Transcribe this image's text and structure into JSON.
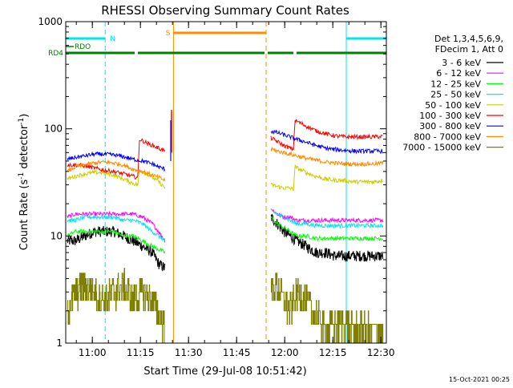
{
  "footer": {
    "timestamp": "15-Oct-2021 00:25"
  },
  "chart_data": {
    "type": "line",
    "title": "RHESSI Observing Summary Count Rates",
    "xlabel": "Start Time (29-Jul-08 10:51:42)",
    "ylabel_parts": [
      "Count Rate (s",
      "-1",
      " detector",
      "-1",
      ")"
    ],
    "yscale": "log",
    "ylim": [
      1,
      1000
    ],
    "xlim_minutes_after_10_51_42": [
      0,
      100
    ],
    "x_ticks": [
      {
        "label": "11:00",
        "t": 8.3
      },
      {
        "label": "11:15",
        "t": 23.3
      },
      {
        "label": "11:30",
        "t": 38.3
      },
      {
        "label": "11:45",
        "t": 53.3
      },
      {
        "label": "12:00",
        "t": 68.3
      },
      {
        "label": "12:15",
        "t": 83.3
      },
      {
        "label": "12:30",
        "t": 98.3
      }
    ],
    "y_ticks": [
      {
        "label": "1",
        "v": 1
      },
      {
        "label": "10",
        "v": 10
      },
      {
        "label": "100",
        "v": 100
      },
      {
        "label": "1000",
        "v": 1000
      }
    ],
    "legend": {
      "header": [
        "Det 1,3,4,5,6,9,",
        "FDecim 1, Att 0"
      ],
      "placement": "right"
    },
    "flags": [
      {
        "label": "N",
        "color": "#00e5ee",
        "segments": [
          [
            0,
            12.3
          ],
          [
            87.5,
            100
          ]
        ]
      },
      {
        "label": "S",
        "color": "#ff8c00",
        "segments": [
          [
            33.6,
            62.5
          ]
        ]
      },
      {
        "label": "RDO",
        "color": "#008000",
        "segments": [
          [
            0,
            2.5
          ]
        ]
      },
      {
        "label": "RD4",
        "color": "#008000",
        "segments": [
          [
            0,
            21.5
          ],
          [
            22.5,
            62
          ],
          [
            63,
            71
          ],
          [
            72,
            100
          ]
        ]
      }
    ],
    "markers": [
      {
        "t": 12.3,
        "color": "#00e5ee",
        "style": "dashed"
      },
      {
        "t": 33.6,
        "color": "#ff8c00",
        "style": "solid"
      },
      {
        "t": 62.5,
        "color": "#ff8c00",
        "style": "dashed"
      },
      {
        "t": 87.5,
        "color": "#00e5ee",
        "style": "solid"
      },
      {
        "t": 100,
        "color": "#00e5ee",
        "style": "dashed"
      }
    ],
    "data_gap_minutes": [
      33.6,
      63.5
    ],
    "series": [
      {
        "name": "3 - 6 keV",
        "color": "#000000",
        "x": [
          0.5,
          3,
          6,
          9,
          12,
          15,
          18,
          21,
          24,
          27,
          29,
          31,
          64,
          66,
          68,
          70,
          72,
          75,
          78,
          81,
          84,
          87,
          90,
          93,
          96,
          99
        ],
        "y": [
          9,
          9,
          10,
          11,
          11,
          11,
          10,
          9,
          8,
          7,
          5.5,
          5,
          15,
          13,
          11,
          10,
          9,
          8,
          7,
          7,
          6.5,
          6.5,
          6.5,
          6.5,
          6.5,
          6.5
        ]
      },
      {
        "name": "6 - 12 keV",
        "color": "#ff00ff",
        "x": [
          0.5,
          3,
          6,
          9,
          12,
          15,
          18,
          21,
          24,
          27,
          29,
          31,
          64,
          66,
          68,
          70,
          72,
          75,
          78,
          81,
          84,
          87,
          90,
          93,
          96,
          99
        ],
        "y": [
          15,
          16,
          16,
          16,
          16,
          16,
          16,
          16,
          15,
          13,
          11,
          9,
          18,
          16,
          15,
          15,
          14,
          14,
          14,
          14,
          14,
          14,
          14,
          14,
          14,
          14
        ]
      },
      {
        "name": "12 - 25 keV",
        "color": "#00ff00",
        "x": [
          0.5,
          3,
          6,
          9,
          12,
          15,
          18,
          21,
          24,
          27,
          29,
          31,
          64,
          66,
          68,
          70,
          72,
          75,
          78,
          81,
          84,
          87,
          90,
          93,
          96,
          99
        ],
        "y": [
          10,
          11,
          11,
          11,
          11,
          11,
          10,
          10,
          9,
          8,
          7.5,
          7,
          15,
          13,
          12,
          11,
          10,
          10,
          9.5,
          9.5,
          9.5,
          9.5,
          9.5,
          9.5,
          9.5,
          9.5
        ]
      },
      {
        "name": "25 - 50 keV",
        "color": "#00e5ee",
        "x": [
          0.5,
          3,
          6,
          9,
          12,
          15,
          18,
          21,
          24,
          27,
          29,
          31,
          64,
          66,
          68,
          70,
          72,
          75,
          78,
          81,
          84,
          87,
          90,
          93,
          96,
          99
        ],
        "y": [
          14,
          14,
          15,
          15,
          15,
          15,
          14,
          14,
          13,
          11,
          10,
          9,
          17,
          16,
          15,
          14,
          13,
          13,
          12.5,
          12.5,
          12.5,
          12.5,
          12.5,
          12.5,
          12.5,
          12.5
        ]
      },
      {
        "name": "50 - 100 keV",
        "color": "#cccc00",
        "x": [
          0.5,
          3,
          6,
          9,
          12,
          15,
          18,
          21,
          22.5,
          23,
          26,
          29,
          31,
          64,
          66,
          68,
          70,
          71,
          71.5,
          75,
          78,
          81,
          84,
          87,
          90,
          93,
          96,
          99
        ],
        "y": [
          34,
          36,
          38,
          39,
          39,
          37,
          34,
          31,
          30,
          41,
          37,
          32,
          28,
          30,
          29,
          28,
          28,
          27,
          44,
          39,
          36,
          34,
          33,
          33,
          32,
          32,
          32,
          33
        ]
      },
      {
        "name": "100 - 300 keV",
        "color": "#ff0000",
        "x": [
          0.5,
          3,
          6,
          9,
          12,
          15,
          18,
          21,
          22.5,
          23,
          26,
          29,
          31,
          64,
          66,
          68,
          70,
          71,
          71.5,
          75,
          78,
          81,
          84,
          87,
          90,
          93,
          96,
          99
        ],
        "y": [
          46,
          46,
          45,
          43,
          41,
          40,
          38,
          36,
          35,
          80,
          72,
          66,
          62,
          82,
          76,
          70,
          66,
          64,
          120,
          106,
          96,
          90,
          86,
          84,
          84,
          84,
          84,
          85
        ]
      },
      {
        "name": "300 - 800 keV",
        "color": "#0000ff",
        "x": [
          0.5,
          3,
          6,
          9,
          12,
          15,
          18,
          21,
          24,
          27,
          29,
          31,
          64,
          66,
          68,
          70,
          72,
          75,
          78,
          81,
          84,
          87,
          90,
          93,
          96,
          99
        ],
        "y": [
          52,
          54,
          56,
          58,
          58,
          57,
          55,
          52,
          50,
          47,
          44,
          42,
          95,
          92,
          88,
          84,
          80,
          75,
          70,
          66,
          64,
          63,
          62,
          62,
          62,
          62
        ]
      },
      {
        "name": "800 - 7000 keV",
        "color": "#ff8c00",
        "x": [
          0.5,
          3,
          6,
          9,
          12,
          15,
          18,
          21,
          24,
          27,
          29,
          31,
          64,
          66,
          68,
          70,
          72,
          75,
          78,
          81,
          84,
          87,
          90,
          93,
          96,
          99
        ],
        "y": [
          40,
          44,
          46,
          48,
          49,
          48,
          46,
          42,
          40,
          37,
          35,
          33,
          65,
          62,
          60,
          58,
          56,
          53,
          51,
          49,
          48,
          47,
          47,
          47,
          47,
          48
        ]
      },
      {
        "name": "7000 - 15000 keV",
        "color": "#808000",
        "x": [
          0.5,
          3,
          6,
          9,
          12,
          15,
          18,
          21,
          24,
          27,
          29,
          31,
          64,
          66,
          68,
          70,
          72,
          75,
          78,
          81,
          84,
          87,
          90,
          93,
          96,
          99
        ],
        "y": [
          2,
          3,
          3.5,
          3,
          2.5,
          3,
          3.5,
          2.5,
          3,
          2.5,
          1.8,
          1.5,
          3,
          3.5,
          2.5,
          2,
          3,
          2.5,
          1.8,
          1.4,
          1.5,
          1.5,
          1.3,
          1.3,
          1.3,
          1.3
        ]
      }
    ]
  }
}
